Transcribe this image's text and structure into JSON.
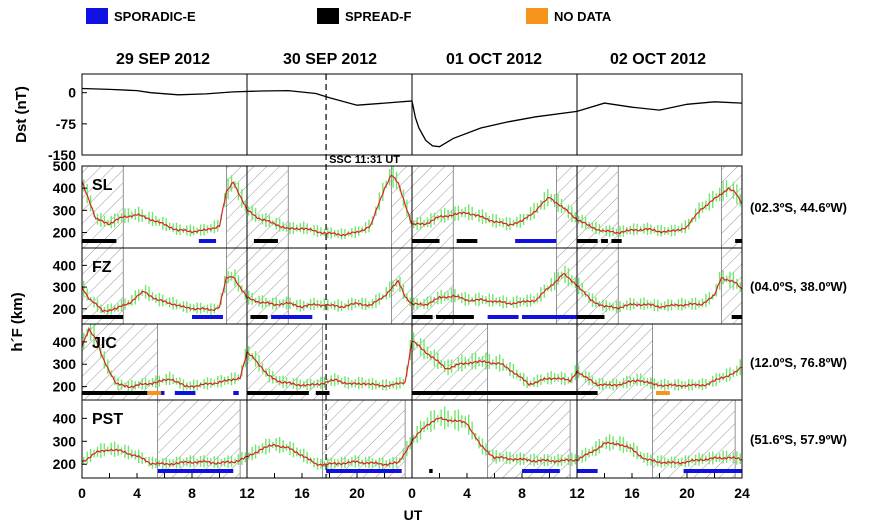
{
  "legend": [
    {
      "label": "SPORADIC-E",
      "color": "#1010e0"
    },
    {
      "label": "SPREAD-F",
      "color": "#000000"
    },
    {
      "label": "NO DATA",
      "color": "#f7941d"
    }
  ],
  "colors": {
    "mean": "#e02020",
    "hf": "#6ee86e",
    "hatch": "#9a9a9a"
  },
  "chart_data": {
    "type": "line",
    "days": [
      "29 SEP 2012",
      "30 SEP 2012",
      "01 OCT 2012",
      "02 OCT 2012"
    ],
    "xlabel": "UT",
    "xticks": [
      "0",
      "4",
      "8",
      "12",
      "16",
      "20",
      "0",
      "4",
      "8",
      "12",
      "16",
      "20",
      "24"
    ],
    "xrange_hours": [
      0,
      96
    ],
    "ssc_label": "SSC 11:31 UT",
    "ssc_time_hours": 35.5,
    "dst": {
      "ylabel": "Dst (nT)",
      "yticks": [
        0,
        -75,
        -150
      ],
      "ylim": [
        -150,
        45
      ],
      "hours": [
        0,
        4,
        8,
        10,
        14,
        18,
        22,
        26,
        30,
        34,
        36,
        40,
        44,
        48,
        48.5,
        49,
        50,
        51,
        52,
        54,
        58,
        62,
        66,
        72,
        76,
        80,
        84,
        88,
        92,
        96
      ],
      "values": [
        10,
        8,
        5,
        0,
        -5,
        -3,
        2,
        4,
        5,
        -2,
        -12,
        -30,
        -25,
        -20,
        -60,
        -85,
        -115,
        -128,
        -130,
        -110,
        -85,
        -70,
        -58,
        -45,
        -25,
        -35,
        -42,
        -28,
        -22,
        -25
      ]
    },
    "hf_ylabel": "h´F (km)",
    "stations": [
      {
        "name": "SL",
        "coords": "(02.3ºS, 44.6ºW)",
        "ylim": [
          130,
          500
        ],
        "yticks": [
          200,
          300,
          400,
          500
        ],
        "hours": [
          0,
          1,
          2,
          4,
          6,
          8,
          10,
          12,
          14,
          16,
          18,
          20,
          21,
          22,
          24,
          26,
          28,
          30,
          32,
          34,
          36,
          38,
          40,
          42,
          44,
          45,
          46,
          47,
          48,
          50,
          52,
          54,
          56,
          58,
          60,
          62,
          64,
          66,
          68,
          70,
          72,
          74,
          76,
          78,
          80,
          82,
          84,
          86,
          88,
          90,
          92,
          94,
          95,
          96
        ],
        "values": [
          430,
          350,
          260,
          240,
          270,
          280,
          260,
          235,
          210,
          205,
          210,
          230,
          380,
          430,
          300,
          260,
          240,
          215,
          220,
          205,
          195,
          190,
          200,
          230,
          400,
          460,
          420,
          330,
          235,
          240,
          270,
          280,
          290,
          270,
          250,
          235,
          250,
          300,
          360,
          310,
          260,
          225,
          205,
          200,
          210,
          215,
          205,
          205,
          225,
          305,
          350,
          400,
          380,
          330
        ],
        "nights": [
          [
            0,
            6
          ],
          [
            21,
            30
          ],
          [
            45,
            54
          ],
          [
            69,
            78
          ],
          [
            93,
            96
          ]
        ],
        "sporadic_e": [
          [
            17,
            19.5
          ],
          [
            63,
            69
          ]
        ],
        "spread_f": [
          [
            0,
            5
          ],
          [
            25,
            28.5
          ],
          [
            48,
            52
          ],
          [
            54.5,
            57.5
          ],
          [
            72,
            75
          ],
          [
            75.5,
            76.5
          ],
          [
            77,
            78.5
          ],
          [
            95,
            96
          ]
        ],
        "no_data": []
      },
      {
        "name": "FZ",
        "coords": "(04.0ºS, 38.0ºW)",
        "ylim": [
          130,
          480
        ],
        "yticks": [
          200,
          300,
          400
        ],
        "hours": [
          0,
          1,
          3,
          5,
          7,
          9,
          11,
          13,
          15,
          17,
          19,
          20,
          21,
          22,
          23,
          24,
          26,
          28,
          30,
          32,
          34,
          36,
          38,
          40,
          42,
          44,
          46,
          47,
          48,
          50,
          52,
          54,
          56,
          58,
          60,
          62,
          64,
          66,
          68,
          70,
          72,
          74,
          76,
          78,
          80,
          82,
          84,
          86,
          88,
          90,
          92,
          93,
          95,
          96
        ],
        "values": [
          300,
          250,
          190,
          200,
          230,
          280,
          240,
          225,
          205,
          200,
          195,
          210,
          340,
          350,
          300,
          250,
          230,
          220,
          225,
          210,
          220,
          215,
          210,
          225,
          215,
          260,
          325,
          260,
          220,
          220,
          250,
          260,
          240,
          240,
          235,
          225,
          230,
          240,
          300,
          360,
          310,
          240,
          210,
          205,
          220,
          220,
          210,
          215,
          220,
          220,
          260,
          345,
          320,
          290
        ],
        "nights": [
          [
            0,
            6
          ],
          [
            21,
            30
          ],
          [
            45,
            54
          ],
          [
            69,
            78
          ],
          [
            93,
            96
          ]
        ],
        "sporadic_e": [
          [
            16,
            20.5
          ],
          [
            27.5,
            33.5
          ],
          [
            59,
            63.5
          ],
          [
            64,
            72
          ]
        ],
        "spread_f": [
          [
            0,
            6
          ],
          [
            24.5,
            27
          ],
          [
            48,
            51
          ],
          [
            51.5,
            57
          ],
          [
            72,
            76
          ],
          [
            94.5,
            96
          ]
        ],
        "no_data": []
      },
      {
        "name": "JIC",
        "coords": "(12.0ºS, 76.8ºW)",
        "ylim": [
          140,
          480
        ],
        "yticks": [
          200,
          300,
          400
        ],
        "hours": [
          0,
          1,
          2,
          3,
          5,
          7,
          9,
          11,
          13,
          15,
          17,
          19,
          21,
          23,
          24,
          25,
          27,
          29,
          31,
          33,
          35,
          37,
          39,
          41,
          43,
          45,
          47,
          48,
          49,
          51,
          53,
          55,
          57,
          59,
          61,
          63,
          65,
          67,
          69,
          71,
          72,
          73,
          75,
          77,
          79,
          81,
          83,
          85,
          87,
          89,
          91,
          93,
          95,
          96
        ],
        "values": [
          380,
          460,
          410,
          330,
          210,
          200,
          210,
          220,
          235,
          200,
          205,
          215,
          225,
          240,
          350,
          330,
          250,
          220,
          210,
          205,
          215,
          230,
          210,
          215,
          205,
          205,
          220,
          405,
          380,
          330,
          280,
          300,
          310,
          310,
          300,
          260,
          210,
          230,
          240,
          225,
          270,
          245,
          210,
          205,
          215,
          230,
          210,
          205,
          205,
          205,
          210,
          240,
          260,
          290
        ],
        "nights": [
          [
            0,
            11
          ],
          [
            24,
            35
          ],
          [
            48,
            59
          ],
          [
            72,
            83
          ]
        ],
        "sporadic_e": [
          [
            9.5,
            12
          ],
          [
            13.5,
            16.5
          ],
          [
            22,
            22.8
          ]
        ],
        "spread_f": [
          [
            0,
            9.5
          ],
          [
            24,
            33
          ],
          [
            34,
            36
          ],
          [
            48,
            72.5
          ],
          [
            72.5,
            75
          ]
        ],
        "no_data": [
          [
            9.5,
            11.5
          ],
          [
            83.5,
            85.5
          ]
        ]
      },
      {
        "name": "PST",
        "coords": "(51.6ºS, 57.9ºW)",
        "ylim": [
          140,
          480
        ],
        "yticks": [
          200,
          300,
          400
        ],
        "hours": [
          0,
          2,
          4,
          6,
          8,
          10,
          12,
          14,
          16,
          18,
          20,
          22,
          24,
          26,
          28,
          30,
          32,
          34,
          36,
          38,
          40,
          42,
          44,
          46,
          48,
          50,
          52,
          54,
          56,
          58,
          60,
          62,
          64,
          66,
          68,
          70,
          72,
          74,
          76,
          78,
          80,
          82,
          84,
          86,
          88,
          90,
          92,
          94,
          96
        ],
        "values": [
          210,
          250,
          265,
          255,
          235,
          205,
          200,
          205,
          210,
          210,
          205,
          210,
          230,
          265,
          285,
          270,
          240,
          200,
          200,
          205,
          210,
          205,
          200,
          205,
          300,
          370,
          400,
          390,
          380,
          280,
          230,
          225,
          220,
          215,
          215,
          215,
          220,
          250,
          290,
          290,
          265,
          220,
          210,
          205,
          210,
          220,
          225,
          230,
          220
        ],
        "nights": [
          [
            11,
            23
          ],
          [
            35,
            47
          ],
          [
            59,
            71
          ],
          [
            83,
            95
          ]
        ],
        "sporadic_e": [
          [
            11,
            22
          ],
          [
            35.5,
            46.5
          ],
          [
            64,
            69.5
          ],
          [
            72,
            75
          ],
          [
            87.5,
            96
          ]
        ],
        "spread_f": [
          [
            50.5,
            51
          ]
        ],
        "no_data": []
      }
    ]
  }
}
